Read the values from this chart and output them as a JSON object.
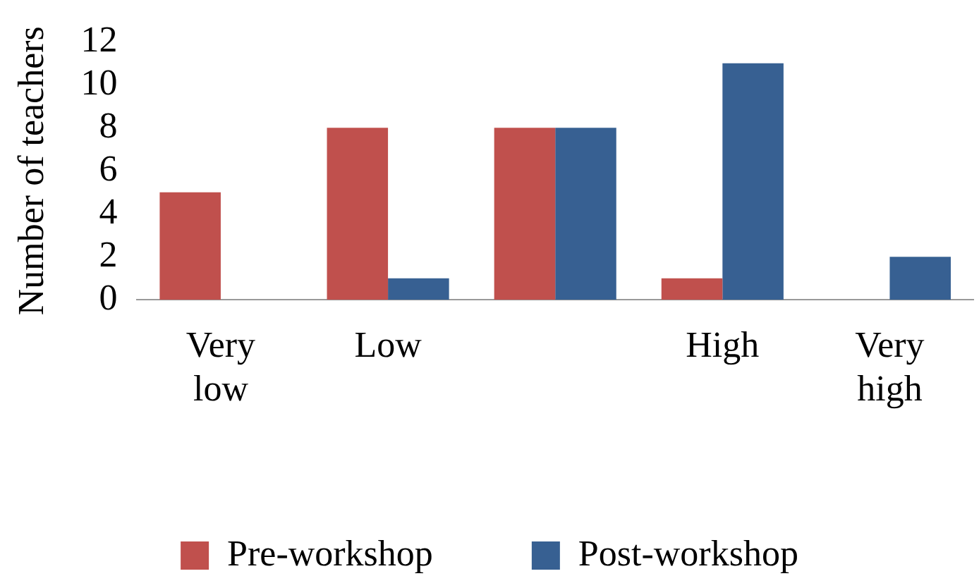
{
  "chart_data": {
    "type": "bar",
    "ylabel": "Number of teachers",
    "categories": [
      "Very low",
      "Low",
      null,
      "High",
      "Very high"
    ],
    "series": [
      {
        "name": "Pre-workshop",
        "color": "#c0504d",
        "values": [
          5,
          8,
          8,
          1,
          0
        ]
      },
      {
        "name": "Post-workshop",
        "color": "#376092",
        "values": [
          0,
          1,
          8,
          11,
          2
        ]
      }
    ],
    "ylim": [
      0,
      12
    ],
    "yticks": [
      0,
      2,
      4,
      6,
      8,
      10,
      12
    ],
    "grid": false,
    "legend": "bottom"
  }
}
